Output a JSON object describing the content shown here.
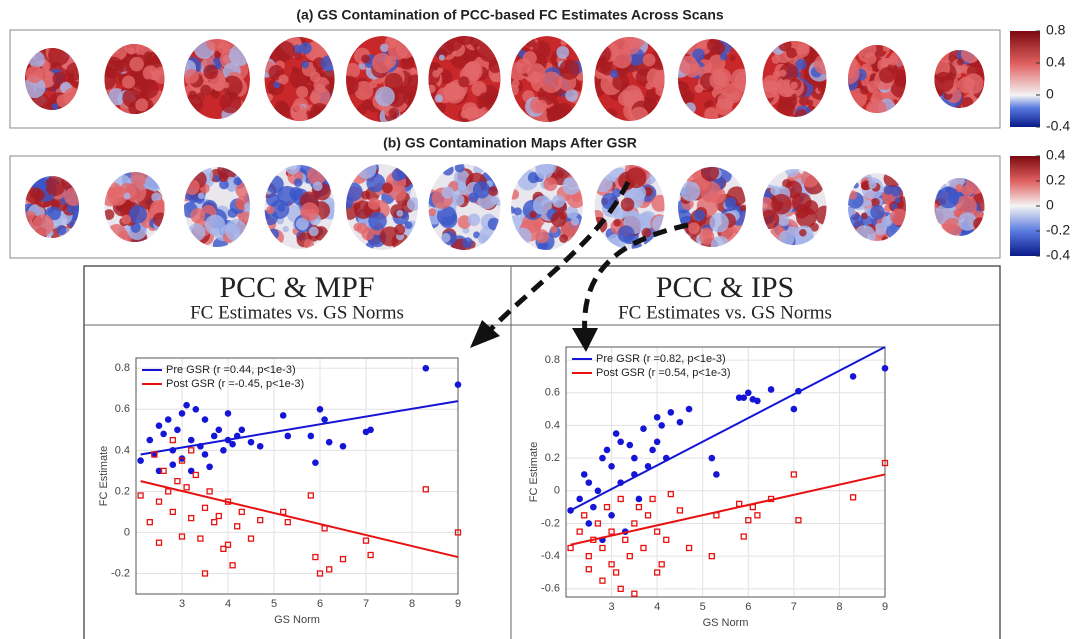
{
  "panel_a": {
    "title": "(a) GS Contamination of PCC-based FC Estimates Across Scans",
    "clim": [
      -0.4,
      0.8
    ],
    "cticks": [
      0.8,
      0.4,
      0,
      -0.4
    ]
  },
  "panel_b": {
    "title": "(b) GS Contamination Maps After GSR",
    "clim": [
      -0.4,
      0.4
    ],
    "cticks": [
      0.4,
      0.2,
      0,
      -0.2,
      -0.4
    ]
  },
  "chart_data": [
    {
      "type": "scatter",
      "title": "PCC & MPF",
      "subtitle": "FC Estimates vs. GS Norms",
      "xlabel": "GS Norm",
      "ylabel": "FC Estimate",
      "x": [
        2.1,
        2.3,
        2.4,
        2.5,
        2.5,
        2.6,
        2.7,
        2.8,
        2.8,
        2.9,
        3.0,
        3.0,
        3.1,
        3.2,
        3.2,
        3.3,
        3.4,
        3.5,
        3.5,
        3.6,
        3.7,
        3.8,
        3.9,
        4.0,
        4.0,
        4.1,
        4.2,
        4.3,
        4.5,
        4.7,
        5.2,
        5.3,
        5.8,
        5.9,
        6.0,
        6.1,
        6.2,
        6.5,
        7.0,
        7.1,
        8.3,
        9.0
      ],
      "fit_x": [
        2.1,
        9
      ],
      "series": [
        {
          "name": "Pre GSR (r =0.44, p<1e-3)",
          "color": "#1515d6",
          "marker": "circle",
          "fit": [
            0.38,
            0.64
          ],
          "values": [
            0.35,
            0.45,
            0.38,
            0.52,
            0.3,
            0.48,
            0.55,
            0.4,
            0.33,
            0.5,
            0.58,
            0.36,
            0.62,
            0.45,
            0.3,
            0.6,
            0.42,
            0.38,
            0.55,
            0.32,
            0.47,
            0.5,
            0.4,
            0.45,
            0.58,
            0.43,
            0.47,
            0.5,
            0.44,
            0.42,
            0.57,
            0.47,
            0.47,
            0.34,
            0.6,
            0.55,
            0.44,
            0.42,
            0.49,
            0.5,
            0.8,
            0.72
          ]
        },
        {
          "name": "Post GSR (r =-0.45, p<1e-3)",
          "color": "#e81010",
          "marker": "square",
          "fit": [
            0.25,
            -0.12
          ],
          "values": [
            0.18,
            0.05,
            0.38,
            0.15,
            -0.05,
            0.3,
            0.2,
            0.45,
            0.1,
            0.25,
            0.35,
            -0.02,
            0.22,
            0.07,
            0.4,
            0.28,
            -0.03,
            -0.2,
            0.12,
            0.2,
            0.05,
            0.08,
            -0.08,
            0.15,
            -0.06,
            -0.16,
            0.03,
            0.1,
            -0.03,
            0.06,
            0.1,
            0.05,
            0.18,
            -0.12,
            -0.2,
            0.02,
            -0.18,
            -0.13,
            -0.04,
            -0.11,
            0.21,
            0
          ]
        }
      ],
      "xlim": [
        2,
        9
      ],
      "ylim": [
        -0.3,
        0.85
      ],
      "xticks": [
        3,
        4,
        5,
        6,
        7,
        8,
        9
      ],
      "yticks": [
        -0.2,
        0,
        0.2,
        0.4,
        0.6,
        0.8
      ],
      "grid": true,
      "legend": "upper left"
    },
    {
      "type": "scatter",
      "title": "PCC & IPS",
      "subtitle": "FC Estimates vs. GS Norms",
      "xlabel": "GS Norm",
      "ylabel": "FC Estimate",
      "x": [
        2.1,
        2.3,
        2.4,
        2.5,
        2.5,
        2.6,
        2.7,
        2.8,
        2.8,
        2.9,
        3.0,
        3.0,
        3.1,
        3.2,
        3.2,
        3.3,
        3.4,
        3.5,
        3.5,
        3.6,
        3.7,
        3.8,
        3.9,
        4.0,
        4.0,
        4.1,
        4.2,
        4.3,
        4.5,
        4.7,
        5.2,
        5.3,
        5.8,
        5.9,
        6.0,
        6.1,
        6.2,
        6.5,
        7.0,
        7.1,
        8.3,
        9.0
      ],
      "fit_x": [
        2.1,
        9
      ],
      "series": [
        {
          "name": "Pre GSR (r =0.82, p<1e-3)",
          "color": "#1515d6",
          "marker": "circle",
          "fit": [
            -0.12,
            0.88
          ],
          "values": [
            -0.12,
            -0.05,
            0.1,
            -0.2,
            0.05,
            -0.1,
            0.0,
            0.2,
            -0.3,
            0.25,
            0.15,
            -0.15,
            0.35,
            0.05,
            0.3,
            -0.25,
            0.28,
            0.1,
            0.2,
            -0.05,
            0.38,
            0.15,
            0.25,
            0.3,
            0.45,
            0.4,
            0.2,
            0.48,
            0.42,
            0.5,
            0.2,
            0.1,
            0.57,
            0.57,
            0.6,
            0.56,
            0.55,
            0.62,
            0.5,
            0.61,
            0.7,
            0.75
          ]
        },
        {
          "name": "Post GSR (r =0.54, p<1e-3)",
          "color": "#e81010",
          "marker": "square",
          "fit": [
            -0.33,
            0.1
          ],
          "values": [
            -0.35,
            -0.25,
            -0.15,
            -0.4,
            -0.48,
            -0.3,
            -0.2,
            -0.35,
            -0.55,
            -0.1,
            -0.45,
            -0.25,
            -0.5,
            -0.6,
            -0.05,
            -0.3,
            -0.4,
            -0.63,
            -0.2,
            -0.1,
            -0.35,
            -0.15,
            -0.05,
            -0.25,
            -0.5,
            -0.45,
            -0.3,
            -0.02,
            -0.12,
            -0.35,
            -0.4,
            -0.15,
            -0.08,
            -0.28,
            -0.18,
            -0.1,
            -0.15,
            -0.05,
            0.1,
            -0.18,
            -0.04,
            0.17
          ]
        }
      ],
      "xlim": [
        2,
        9
      ],
      "ylim": [
        -0.65,
        0.88
      ],
      "xticks": [
        3,
        4,
        5,
        6,
        7,
        8,
        9
      ],
      "yticks": [
        -0.6,
        -0.4,
        -0.2,
        0,
        0.2,
        0.4,
        0.6,
        0.8
      ],
      "grid": true,
      "legend": "upper left"
    }
  ]
}
